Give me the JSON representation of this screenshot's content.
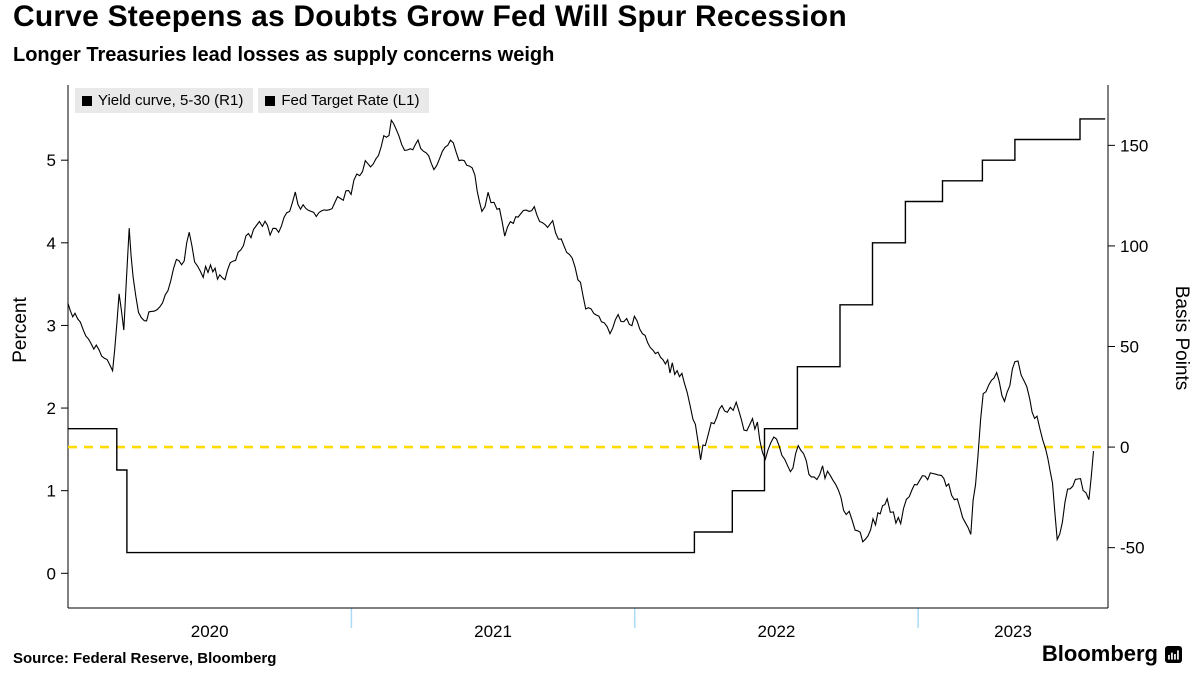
{
  "header": {
    "title": "Curve Steepens as Doubts Grow Fed Will Spur Recession",
    "subtitle": "Longer Treasuries lead losses as supply concerns weigh"
  },
  "footer": {
    "source": "Source: Federal Reserve, Bloomberg",
    "brand": "Bloomberg"
  },
  "chart_data": {
    "type": "line",
    "legend": [
      {
        "label": "Yield curve, 5-30 (R1)",
        "marker_color": "#000000"
      },
      {
        "label": "Fed Target Rate  (L1)",
        "marker_color": "#000000"
      }
    ],
    "legend_background": "#e9e9e9",
    "left_axis": {
      "label": "Percent",
      "ticks": [
        0,
        1,
        2,
        3,
        4,
        5
      ],
      "range": [
        -0.42,
        5.91
      ]
    },
    "right_axis": {
      "label": "Basis Points",
      "ticks": [
        -50,
        0,
        50,
        100,
        150
      ],
      "range": [
        -80,
        180
      ]
    },
    "x_axis": {
      "range": [
        2020.0,
        2023.67
      ],
      "year_labels": [
        {
          "label": "2020",
          "t": 2020.5
        },
        {
          "label": "2021",
          "t": 2021.5
        },
        {
          "label": "2022",
          "t": 2022.5
        },
        {
          "label": "2023",
          "t": 2023.335
        }
      ],
      "boundary_ticks": [
        2021,
        2022,
        2023
      ],
      "boundary_tick_color": "#aadcf5"
    },
    "reference_line": {
      "axis": "right",
      "value": 0,
      "color": "#ffdb00",
      "style": "dashed"
    },
    "grid": false,
    "series": [
      {
        "name": "Yield curve, 5-30",
        "axis": "right",
        "unit": "basis points",
        "color": "#000000",
        "noise_bps": 4,
        "points": [
          [
            "2020-01-01",
            70
          ],
          [
            "2020-01-10",
            64
          ],
          [
            "2020-01-17",
            60
          ],
          [
            "2020-01-24",
            55
          ],
          [
            "2020-01-31",
            48
          ],
          [
            "2020-02-07",
            52
          ],
          [
            "2020-02-14",
            47
          ],
          [
            "2020-02-21",
            42
          ],
          [
            "2020-02-28",
            38
          ],
          [
            "2020-03-06",
            75
          ],
          [
            "2020-03-12",
            60
          ],
          [
            "2020-03-19",
            110
          ],
          [
            "2020-03-24",
            85
          ],
          [
            "2020-03-31",
            68
          ],
          [
            "2020-04-08",
            62
          ],
          [
            "2020-04-17",
            68
          ],
          [
            "2020-04-28",
            72
          ],
          [
            "2020-05-08",
            78
          ],
          [
            "2020-05-19",
            90
          ],
          [
            "2020-05-29",
            94
          ],
          [
            "2020-06-05",
            106
          ],
          [
            "2020-06-12",
            92
          ],
          [
            "2020-06-23",
            86
          ],
          [
            "2020-07-02",
            90
          ],
          [
            "2020-07-14",
            84
          ],
          [
            "2020-07-24",
            88
          ],
          [
            "2020-08-04",
            92
          ],
          [
            "2020-08-14",
            102
          ],
          [
            "2020-08-27",
            108
          ],
          [
            "2020-09-08",
            112
          ],
          [
            "2020-09-18",
            106
          ],
          [
            "2020-09-29",
            110
          ],
          [
            "2020-10-09",
            116
          ],
          [
            "2020-10-20",
            124
          ],
          [
            "2020-10-30",
            120
          ],
          [
            "2020-11-10",
            114
          ],
          [
            "2020-11-20",
            118
          ],
          [
            "2020-11-30",
            116
          ],
          [
            "2020-12-10",
            120
          ],
          [
            "2020-12-21",
            124
          ],
          [
            "2020-12-31",
            127
          ],
          [
            "2021-01-08",
            136
          ],
          [
            "2021-01-19",
            142
          ],
          [
            "2021-01-29",
            140
          ],
          [
            "2021-02-09",
            148
          ],
          [
            "2021-02-19",
            158
          ],
          [
            "2021-02-25",
            162
          ],
          [
            "2021-03-05",
            152
          ],
          [
            "2021-03-16",
            148
          ],
          [
            "2021-03-26",
            152
          ],
          [
            "2021-04-06",
            144
          ],
          [
            "2021-04-16",
            140
          ],
          [
            "2021-04-27",
            146
          ],
          [
            "2021-05-07",
            150
          ],
          [
            "2021-05-18",
            144
          ],
          [
            "2021-05-28",
            140
          ],
          [
            "2021-06-08",
            134
          ],
          [
            "2021-06-17",
            116
          ],
          [
            "2021-06-25",
            124
          ],
          [
            "2021-07-06",
            118
          ],
          [
            "2021-07-16",
            108
          ],
          [
            "2021-07-27",
            112
          ],
          [
            "2021-08-06",
            116
          ],
          [
            "2021-08-17",
            120
          ],
          [
            "2021-08-27",
            114
          ],
          [
            "2021-09-07",
            110
          ],
          [
            "2021-09-17",
            112
          ],
          [
            "2021-09-28",
            104
          ],
          [
            "2021-10-08",
            96
          ],
          [
            "2021-10-19",
            82
          ],
          [
            "2021-10-29",
            72
          ],
          [
            "2021-11-09",
            68
          ],
          [
            "2021-11-19",
            62
          ],
          [
            "2021-11-30",
            58
          ],
          [
            "2021-12-10",
            66
          ],
          [
            "2021-12-21",
            62
          ],
          [
            "2021-12-31",
            64
          ],
          [
            "2022-01-11",
            56
          ],
          [
            "2022-01-21",
            50
          ],
          [
            "2022-01-31",
            46
          ],
          [
            "2022-02-10",
            42
          ],
          [
            "2022-02-22",
            38
          ],
          [
            "2022-03-04",
            34
          ],
          [
            "2022-03-15",
            14
          ],
          [
            "2022-03-25",
            -4
          ],
          [
            "2022-03-31",
            2
          ],
          [
            "2022-04-12",
            12
          ],
          [
            "2022-04-22",
            20
          ],
          [
            "2022-04-29",
            16
          ],
          [
            "2022-05-10",
            22
          ],
          [
            "2022-05-20",
            10
          ],
          [
            "2022-05-31",
            14
          ],
          [
            "2022-06-10",
            6
          ],
          [
            "2022-06-17",
            -4
          ],
          [
            "2022-06-28",
            4
          ],
          [
            "2022-07-08",
            -6
          ],
          [
            "2022-07-19",
            -10
          ],
          [
            "2022-07-29",
            -2
          ],
          [
            "2022-08-09",
            -8
          ],
          [
            "2022-08-19",
            -16
          ],
          [
            "2022-08-30",
            -12
          ],
          [
            "2022-09-09",
            -14
          ],
          [
            "2022-09-20",
            -24
          ],
          [
            "2022-09-30",
            -32
          ],
          [
            "2022-10-11",
            -38
          ],
          [
            "2022-10-21",
            -48
          ],
          [
            "2022-10-31",
            -40
          ],
          [
            "2022-11-10",
            -34
          ],
          [
            "2022-11-22",
            -26
          ],
          [
            "2022-11-30",
            -34
          ],
          [
            "2022-12-09",
            -38
          ],
          [
            "2022-12-20",
            -24
          ],
          [
            "2022-12-30",
            -18
          ],
          [
            "2023-01-10",
            -12
          ],
          [
            "2023-01-20",
            -16
          ],
          [
            "2023-01-31",
            -14
          ],
          [
            "2023-02-10",
            -20
          ],
          [
            "2023-02-21",
            -28
          ],
          [
            "2023-02-28",
            -34
          ],
          [
            "2023-03-08",
            -42
          ],
          [
            "2023-03-14",
            -16
          ],
          [
            "2023-03-24",
            24
          ],
          [
            "2023-03-31",
            30
          ],
          [
            "2023-04-11",
            36
          ],
          [
            "2023-04-21",
            24
          ],
          [
            "2023-04-28",
            30
          ],
          [
            "2023-05-04",
            44
          ],
          [
            "2023-05-12",
            36
          ],
          [
            "2023-05-23",
            22
          ],
          [
            "2023-06-02",
            12
          ],
          [
            "2023-06-13",
            0
          ],
          [
            "2023-06-22",
            -18
          ],
          [
            "2023-06-28",
            -46
          ],
          [
            "2023-07-11",
            -24
          ],
          [
            "2023-07-21",
            -14
          ],
          [
            "2023-07-31",
            -22
          ],
          [
            "2023-08-08",
            -26
          ],
          [
            "2023-08-14",
            -2
          ]
        ]
      },
      {
        "name": "Fed Target Rate",
        "axis": "left",
        "unit": "percent",
        "color": "#000000",
        "style": "step",
        "points": [
          [
            "2020-01-01",
            1.75
          ],
          [
            "2020-03-03",
            1.25
          ],
          [
            "2020-03-16",
            0.25
          ],
          [
            "2022-03-17",
            0.5
          ],
          [
            "2022-05-05",
            1.0
          ],
          [
            "2022-06-16",
            1.75
          ],
          [
            "2022-07-28",
            2.5
          ],
          [
            "2022-09-22",
            3.25
          ],
          [
            "2022-11-03",
            4.0
          ],
          [
            "2022-12-15",
            4.5
          ],
          [
            "2023-02-02",
            4.75
          ],
          [
            "2023-03-23",
            5.0
          ],
          [
            "2023-05-04",
            5.25
          ],
          [
            "2023-07-27",
            5.5
          ]
        ]
      }
    ]
  }
}
